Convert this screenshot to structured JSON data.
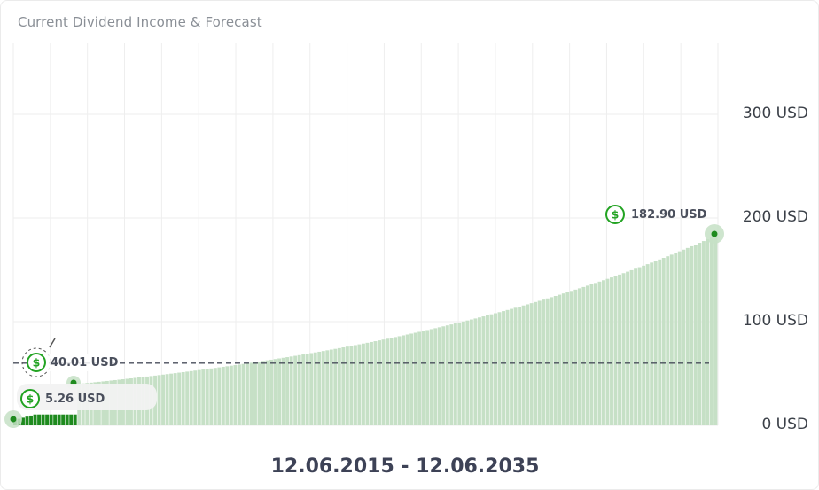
{
  "title": "Current Dividend Income & Forecast",
  "date_range": "12.06.2015 - 12.06.2035",
  "colors": {
    "paid_bar": "#1e8a1e",
    "forecast_bar": "#c6e0c6",
    "icon": "#22a322",
    "grid": "#eeeeee",
    "dashed_line": "#4a4f5c"
  },
  "chart_data": {
    "type": "bar",
    "title": "Current Dividend Income & Forecast",
    "xlabel": "",
    "ylabel": "",
    "x_range": [
      "12.06.2015",
      "12.06.2035"
    ],
    "ylim": [
      0,
      390
    ],
    "y_ticks": [
      {
        "value": 0,
        "label": "0 USD"
      },
      {
        "value": 100,
        "label": "100 USD"
      },
      {
        "value": 200,
        "label": "200 USD"
      },
      {
        "value": 300,
        "label": "300 USD"
      }
    ],
    "grid": true,
    "series": [
      {
        "kind": "paid",
        "bars": 16,
        "start": 5.26,
        "end": 10.5
      },
      {
        "kind": "forecast",
        "bars": 160,
        "start": 40.01,
        "end": 182.9
      }
    ],
    "reference_line": {
      "value": 60,
      "style": "dashed"
    },
    "annotations": [
      {
        "label": "5.26 USD",
        "value": 5.26
      },
      {
        "label": "40.01 USD",
        "value": 40.01
      },
      {
        "label": "182.90 USD",
        "value": 182.9
      }
    ]
  }
}
